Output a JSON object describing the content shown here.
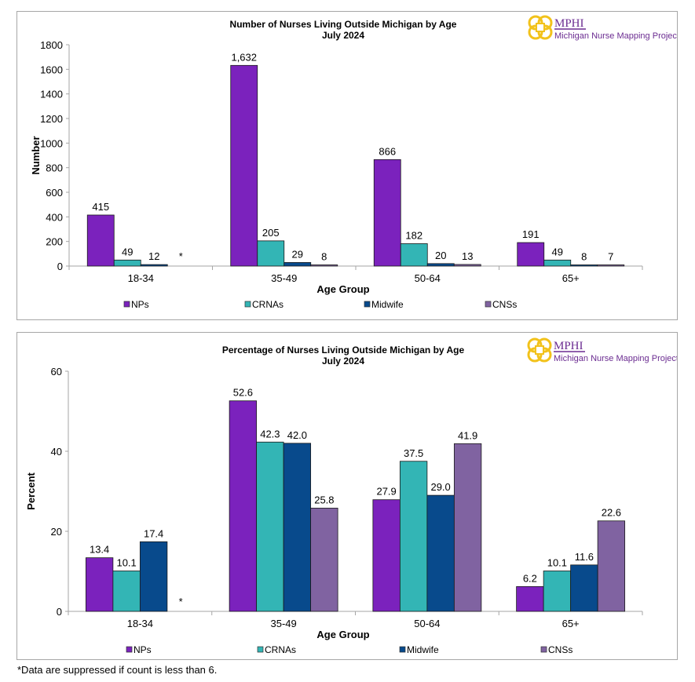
{
  "footnote": "*Data are suppressed if count is less than 6.",
  "logo": {
    "name": "MPHI",
    "subtitle": "Michigan Nurse Mapping Project"
  },
  "colors": {
    "NPs": "#7b22bd",
    "CRNAs": "#33b5b5",
    "Midwife": "#084a8c",
    "CNSs": "#8063a1"
  },
  "chart_data": [
    {
      "type": "bar",
      "title": "Number of Nurses Living Outside Michigan by Age",
      "subtitle": "July 2024",
      "xlabel": "Age Group",
      "ylabel": "Number",
      "ylim": [
        0,
        1800
      ],
      "yticks": [
        0,
        200,
        400,
        600,
        800,
        1000,
        1200,
        1400,
        1600,
        1800
      ],
      "grid": false,
      "legend": "bottom",
      "categories": [
        "18-34",
        "35-49",
        "50-64",
        "65+"
      ],
      "series": [
        {
          "name": "NPs",
          "values": [
            415,
            1632,
            866,
            191
          ],
          "labels": [
            "415",
            "1,632",
            "866",
            "191"
          ]
        },
        {
          "name": "CRNAs",
          "values": [
            49,
            205,
            182,
            49
          ],
          "labels": [
            "49",
            "205",
            "182",
            "49"
          ]
        },
        {
          "name": "Midwife",
          "values": [
            12,
            29,
            20,
            8
          ],
          "labels": [
            "12",
            "29",
            "20",
            "8"
          ]
        },
        {
          "name": "CNSs",
          "values": [
            null,
            8,
            13,
            7
          ],
          "labels": [
            "*",
            "8",
            "13",
            "7"
          ]
        }
      ]
    },
    {
      "type": "bar",
      "title": "Percentage of Nurses Living Outside Michigan by Age",
      "subtitle": "July 2024",
      "xlabel": "Age Group",
      "ylabel": "Percent",
      "ylim": [
        0,
        60
      ],
      "yticks": [
        0,
        20,
        40,
        60
      ],
      "grid": false,
      "legend": "bottom",
      "categories": [
        "18-34",
        "35-49",
        "50-64",
        "65+"
      ],
      "series": [
        {
          "name": "NPs",
          "values": [
            13.4,
            52.6,
            27.9,
            6.2
          ],
          "labels": [
            "13.4",
            "52.6",
            "27.9",
            "6.2"
          ]
        },
        {
          "name": "CRNAs",
          "values": [
            10.1,
            42.3,
            37.5,
            10.1
          ],
          "labels": [
            "10.1",
            "42.3",
            "37.5",
            "10.1"
          ]
        },
        {
          "name": "Midwife",
          "values": [
            17.4,
            42.0,
            29.0,
            11.6
          ],
          "labels": [
            "17.4",
            "42.0",
            "29.0",
            "11.6"
          ]
        },
        {
          "name": "CNSs",
          "values": [
            null,
            25.8,
            41.9,
            22.6
          ],
          "labels": [
            "*",
            "25.8",
            "41.9",
            "22.6"
          ]
        }
      ]
    }
  ]
}
